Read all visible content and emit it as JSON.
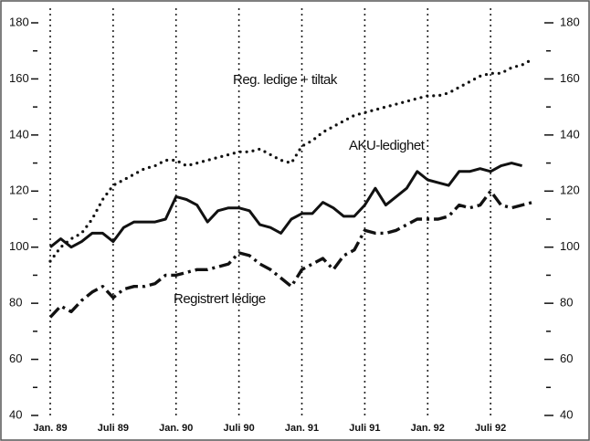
{
  "chart_data": {
    "type": "line",
    "categories": [
      "Jan. 89",
      null,
      null,
      null,
      null,
      null,
      "Juli 89",
      null,
      null,
      null,
      null,
      null,
      "Jan. 90",
      null,
      null,
      null,
      null,
      null,
      "Juli 90",
      null,
      null,
      null,
      null,
      null,
      "Jan. 91",
      null,
      null,
      null,
      null,
      null,
      "Juli 91",
      null,
      null,
      null,
      null,
      null,
      "Jan. 92",
      null,
      null,
      null,
      null,
      null,
      "Juli 92",
      null,
      null,
      null,
      null
    ],
    "series": [
      {
        "name": "Reg. ledige + tiltak",
        "color": "#111111",
        "style": "dotted",
        "values": [
          95,
          100,
          103,
          105,
          110,
          117,
          122,
          124,
          126,
          128,
          129,
          131,
          131,
          129,
          130,
          131,
          132,
          133,
          134,
          134,
          135,
          133,
          131,
          130,
          136,
          138,
          141,
          143,
          145,
          147,
          148,
          149,
          150,
          151,
          152,
          153,
          154,
          154,
          155,
          157,
          159,
          161,
          162,
          162,
          164,
          165,
          167
        ]
      },
      {
        "name": "AKU-ledighet",
        "color": "#111111",
        "style": "solid",
        "values": [
          100,
          103,
          100,
          102,
          105,
          105,
          102,
          107,
          109,
          109,
          109,
          110,
          118,
          117,
          115,
          109,
          113,
          114,
          114,
          113,
          108,
          107,
          105,
          110,
          112,
          112,
          116,
          114,
          111,
          111,
          115,
          121,
          115,
          118,
          121,
          127,
          124,
          123,
          122,
          127,
          127,
          128,
          127,
          129,
          130,
          129,
          null
        ]
      },
      {
        "name": "Registrert ledige",
        "color": "#111111",
        "style": "dashdot",
        "values": [
          75,
          79,
          77,
          81,
          84,
          86,
          82,
          85,
          86,
          86,
          87,
          90,
          90,
          91,
          92,
          92,
          93,
          94,
          98,
          97,
          94,
          92,
          89,
          86,
          92,
          94,
          96,
          92,
          97,
          99,
          106,
          105,
          105,
          106,
          108,
          110,
          110,
          110,
          111,
          115,
          114,
          115,
          120,
          115,
          114,
          115,
          116
        ]
      }
    ],
    "ylim": [
      40,
      180
    ],
    "yticks": [
      40,
      60,
      80,
      100,
      120,
      140,
      160,
      180
    ],
    "y2lim": [
      40,
      180
    ],
    "y2ticks": [
      40,
      60,
      80,
      100,
      120,
      140,
      160,
      180
    ],
    "grid": true
  }
}
